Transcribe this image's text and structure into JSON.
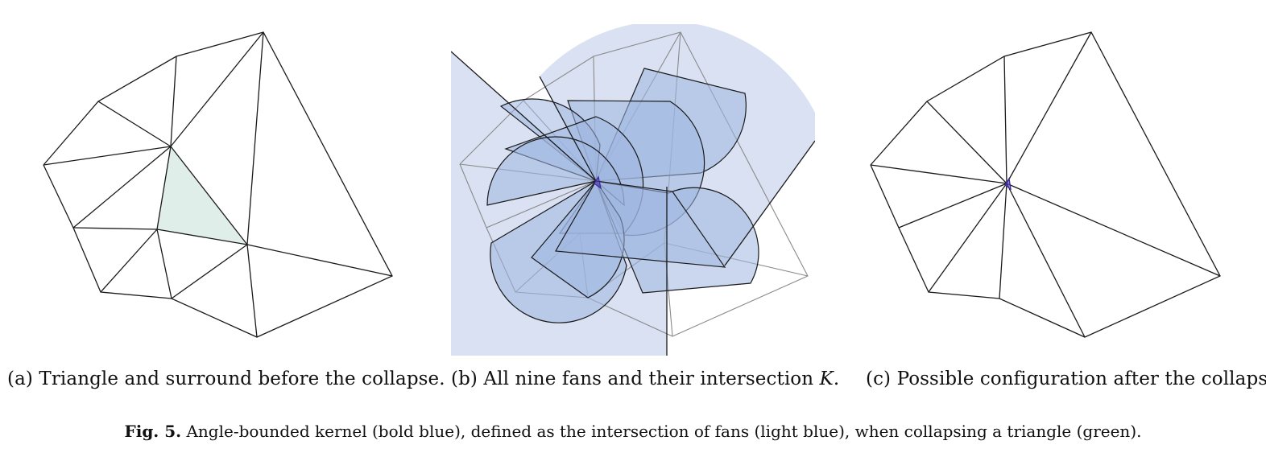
{
  "figure": {
    "label": "Fig. 5.",
    "caption_text": "Angle-bounded kernel (bold blue), defined as the intersection of fans (light blue), when collapsing a triangle (green)."
  },
  "panels": [
    {
      "tag": "(a)",
      "text": "Triangle and surround before the collapse."
    },
    {
      "tag": "(b)",
      "text": "All nine fans and their intersection ",
      "symbol": "K",
      "tail": "."
    },
    {
      "tag": "(c)",
      "text": "Possible configuration after the collapse."
    }
  ],
  "colors": {
    "edge": "#1a1a1a",
    "ghost_edge": "#8a8a8a",
    "triangle_fill": "#dfeee8",
    "fan_fill": "#9fb6e0",
    "fan_big_fill": "#d9e1f2",
    "kernel": "#5a3fc0"
  }
}
